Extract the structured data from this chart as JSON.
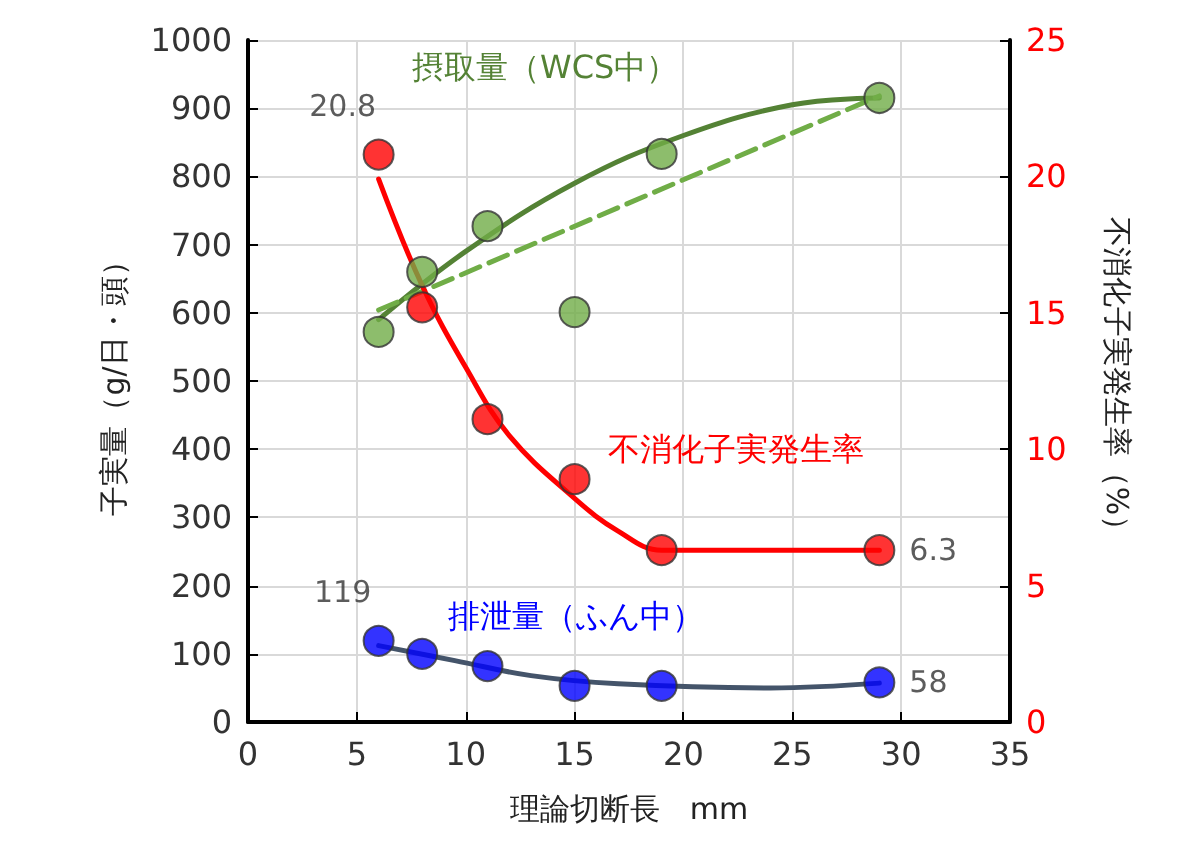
{
  "chart_data": {
    "type": "scatter",
    "xlabel": "理論切断長　mm",
    "ylabel": "子実量（g/日・頭）",
    "y2label": "不消化子実発生率（%）",
    "x": [
      6,
      8,
      11,
      15,
      19,
      29
    ],
    "xlim": [
      0,
      35
    ],
    "xticks": [
      0,
      5,
      10,
      15,
      20,
      25,
      30,
      35
    ],
    "ylim": [
      0,
      1000
    ],
    "yticks": [
      0,
      100,
      200,
      300,
      400,
      500,
      600,
      700,
      800,
      900,
      1000
    ],
    "y2lim": [
      0,
      25
    ],
    "y2ticks": [
      0,
      5,
      10,
      15,
      20,
      25
    ],
    "grid": true,
    "legend": false,
    "marker": "circle",
    "series": [
      {
        "name": "摂取量（WCS中）",
        "color": "#70ad47",
        "values": [
          572,
          660,
          727,
          601,
          833,
          915
        ]
      },
      {
        "name": "不消化子実発生率",
        "color": "#ff0000",
        "axis": "y2",
        "values": [
          20.8,
          15.2,
          11.1,
          8.9,
          6.3,
          6.3
        ],
        "value_labels": [
          "20.8",
          null,
          null,
          null,
          null,
          "6.3"
        ]
      },
      {
        "name": "排泄量（ふん中）",
        "color": "#0000ff",
        "values": [
          119,
          100,
          82,
          53,
          53,
          58
        ],
        "value_labels": [
          "119",
          null,
          null,
          null,
          null,
          "58"
        ]
      },
      {
        "type": "line",
        "color": "#548235",
        "x": [
          6,
          10,
          15,
          20,
          25,
          29
        ],
        "values": [
          590,
          690,
          790,
          860,
          905,
          915
        ],
        "marker": "none",
        "line_style": "solid"
      },
      {
        "type": "line",
        "color": "#70ad47",
        "x": [
          6,
          29
        ],
        "values": [
          604,
          918
        ],
        "marker": "none",
        "line_style": "dashed"
      },
      {
        "type": "line",
        "color": "#ff0000",
        "axis": "y2",
        "x": [
          6,
          8,
          10,
          12,
          15,
          17,
          19,
          29
        ],
        "values": [
          19.9,
          16,
          13,
          10.5,
          8.2,
          7,
          6.3,
          6.3
        ],
        "marker": "none",
        "line_style": "solid"
      },
      {
        "type": "line",
        "color": "#44546a",
        "x": [
          6,
          9.5,
          13,
          17,
          24,
          29
        ],
        "values": [
          112,
          90,
          68,
          56,
          50,
          57
        ],
        "marker": "none",
        "line_style": "solid"
      }
    ]
  }
}
